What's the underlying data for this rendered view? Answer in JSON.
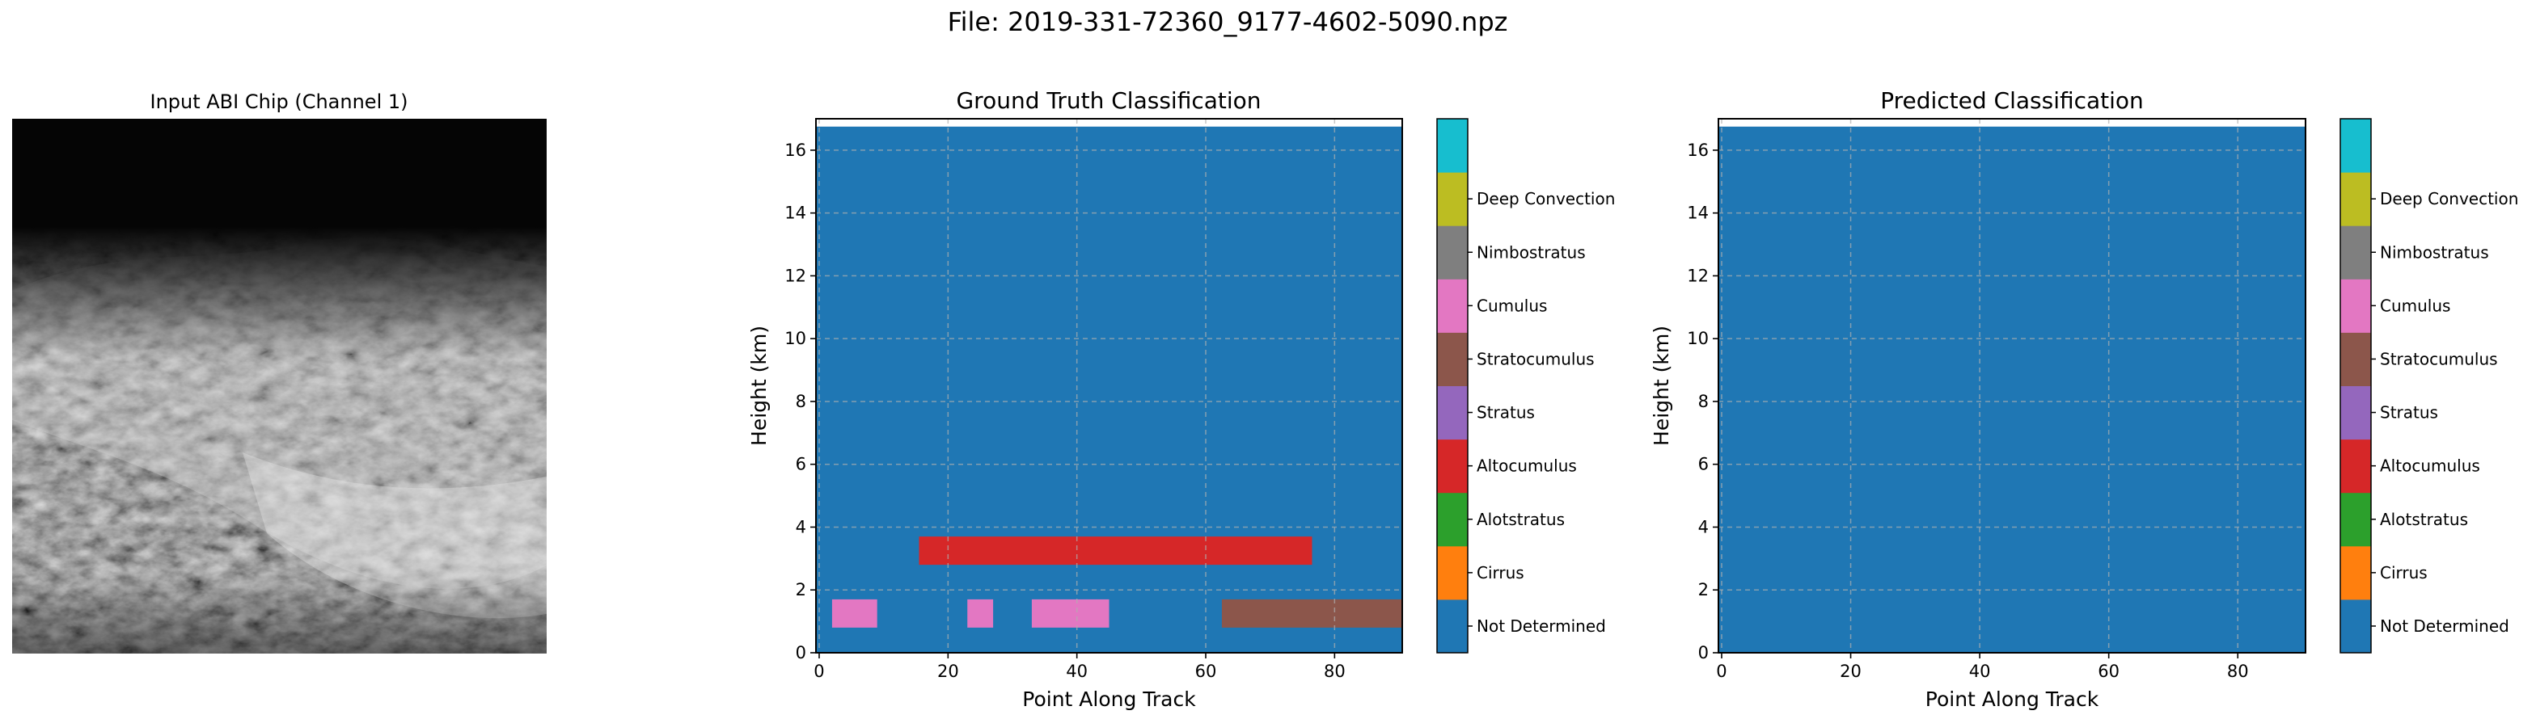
{
  "suptitle": "File: 2019-331-72360_9177-4602-5090.npz",
  "colorbar_labels": [
    "Not Determined",
    "Cirrus",
    "Alotstratus",
    "Altocumulus",
    "Stratus",
    "Stratocumulus",
    "Cumulus",
    "Nimbostratus",
    "Deep Convection"
  ],
  "colors": {
    "classes": [
      "#1f77b4",
      "#ff7f0e",
      "#2ca02c",
      "#d62728",
      "#9467bd",
      "#8c564b",
      "#e377c2",
      "#7f7f7f",
      "#bcbd22",
      "#17becf"
    ],
    "grid": "#b0b0b0"
  },
  "chart_data": [
    {
      "type": "image",
      "title": "Input ABI Chip (Channel 1)",
      "colormap": "gray",
      "description_values": "grayscale satellite image, dark top, bright diagonal cloud band through middle and lower right"
    },
    {
      "type": "heatmap",
      "title": "Ground Truth Classification",
      "xlabel": "Point Along Track",
      "ylabel": "Height (km)",
      "xlim": [
        -0.5,
        90.5
      ],
      "ylim": [
        0,
        17
      ],
      "xticks": [
        "0",
        "20",
        "40",
        "60",
        "80"
      ],
      "yticks": [
        "0",
        "2",
        "4",
        "6",
        "8",
        "10",
        "12",
        "14",
        "16"
      ],
      "grid": true,
      "background_class": "Not Determined",
      "regions": [
        {
          "class": "Altocumulus",
          "x": [
            15.5,
            76.5
          ],
          "y": [
            2.8,
            3.7
          ]
        },
        {
          "class": "Cumulus",
          "x": [
            2,
            9
          ],
          "y": [
            0.8,
            1.7
          ]
        },
        {
          "class": "Cumulus",
          "x": [
            23,
            27
          ],
          "y": [
            0.8,
            1.7
          ]
        },
        {
          "class": "Cumulus",
          "x": [
            33,
            45
          ],
          "y": [
            0.8,
            1.7
          ]
        },
        {
          "class": "Stratocumulus",
          "x": [
            62.5,
            90.5
          ],
          "y": [
            0.8,
            1.7
          ]
        }
      ]
    },
    {
      "type": "heatmap",
      "title": "Predicted Classification",
      "xlabel": "Point Along Track",
      "ylabel": "Height (km)",
      "xlim": [
        -0.5,
        90.5
      ],
      "ylim": [
        0,
        17
      ],
      "xticks": [
        "0",
        "20",
        "40",
        "60",
        "80"
      ],
      "yticks": [
        "0",
        "2",
        "4",
        "6",
        "8",
        "10",
        "12",
        "14",
        "16"
      ],
      "grid": true,
      "background_class": "Not Determined",
      "regions": []
    }
  ]
}
